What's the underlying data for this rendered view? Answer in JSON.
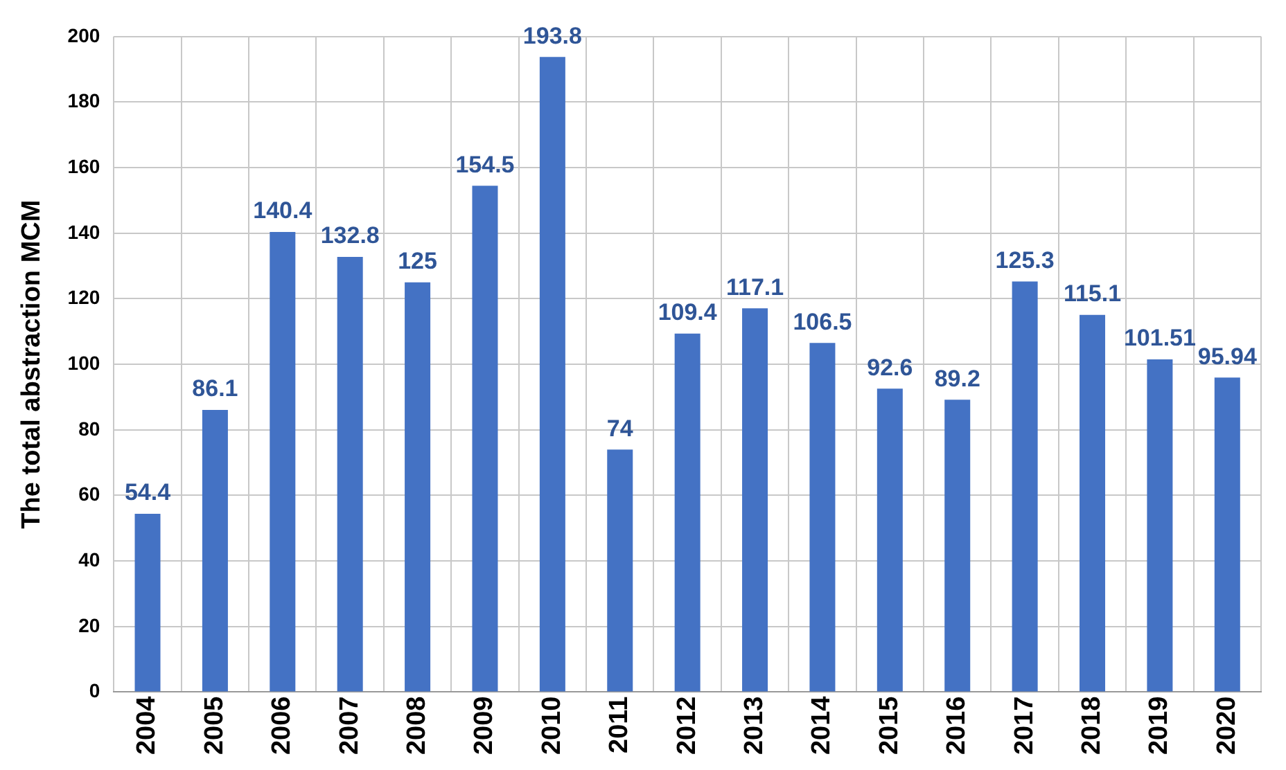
{
  "chart_data": {
    "type": "bar",
    "ylabel": "The total abstraction MCM",
    "categories": [
      "2004",
      "2005",
      "2006",
      "2007",
      "2008",
      "2009",
      "2010",
      "2011",
      "2012",
      "2013",
      "2014",
      "2015",
      "2016",
      "2017",
      "2018",
      "2019",
      "2020"
    ],
    "values": [
      54.4,
      86.1,
      140.4,
      132.8,
      125,
      154.5,
      193.8,
      74,
      109.4,
      117.1,
      106.5,
      92.6,
      89.2,
      125.3,
      115.1,
      101.51,
      95.94
    ],
    "color": "#4472c4",
    "ylim": [
      0,
      200
    ],
    "yticks": [
      0,
      20,
      40,
      60,
      80,
      100,
      120,
      140,
      160,
      180,
      200
    ],
    "grid": true,
    "data_labels": true
  }
}
